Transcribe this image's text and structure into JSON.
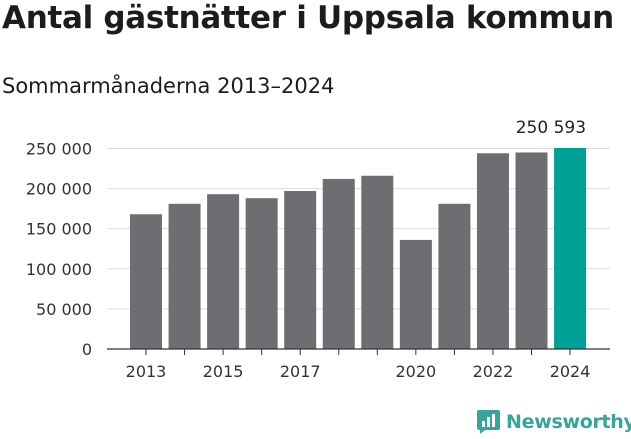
{
  "title": "Antal gästnätter i Uppsala kommun",
  "subtitle": "Sommarmånaderna 2013–2024",
  "brand": "Newsworthy",
  "colors": {
    "bar": "#6e6d72",
    "highlight": "#00a096",
    "grid": "#dddddd",
    "axis": "#333333"
  },
  "chart_data": {
    "type": "bar",
    "title": "Antal gästnätter i Uppsala kommun",
    "subtitle": "Sommarmånaderna 2013–2024",
    "categories": [
      "2013",
      "2014",
      "2015",
      "2016",
      "2017",
      "2018",
      "2019",
      "2020",
      "2021",
      "2022",
      "2023",
      "2024"
    ],
    "values": [
      168000,
      181000,
      193000,
      188000,
      197000,
      212000,
      216000,
      136000,
      181000,
      244000,
      245000,
      250593
    ],
    "x_tick_labels": [
      "2013",
      "",
      "2015",
      "",
      "2017",
      "",
      "",
      "2020",
      "",
      "2022",
      "",
      "2024"
    ],
    "y_ticks": [
      0,
      50000,
      100000,
      150000,
      200000,
      250000
    ],
    "y_tick_labels": [
      "0",
      "50 000",
      "100 000",
      "150 000",
      "200 000",
      "250 000"
    ],
    "ylim": [
      0,
      250593
    ],
    "highlight_index": 11,
    "value_labels": [
      {
        "index": 11,
        "text": "250 593"
      }
    ],
    "grid": true,
    "xlabel": "",
    "ylabel": ""
  }
}
